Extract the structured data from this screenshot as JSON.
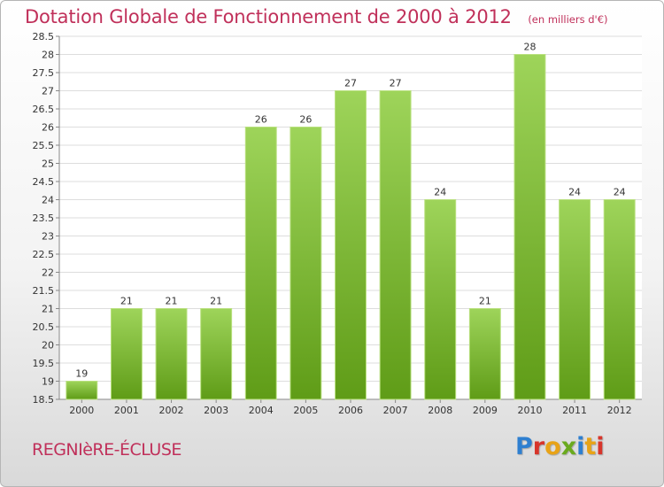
{
  "header": {
    "title": "Dotation Globale de Fonctionnement de 2000 à 2012",
    "subtitle": "(en milliers d'€)"
  },
  "footer": {
    "commune": "REGNIèRE-ÉCLUSE",
    "brand": "Proxiti"
  },
  "colors": {
    "title": "#c0305a",
    "bar_light": "#9ed45a",
    "bar_dark": "#5f9c17",
    "brand_letters": [
      "#2e7fd0",
      "#d7352b",
      "#e8a317",
      "#6aaa1e",
      "#2e7fd0",
      "#e8a317",
      "#d7352b"
    ]
  },
  "chart_data": {
    "type": "bar",
    "title": "Dotation Globale de Fonctionnement de 2000 à 2012",
    "subtitle": "(en milliers d'€)",
    "categories": [
      "2000",
      "2001",
      "2002",
      "2003",
      "2004",
      "2005",
      "2006",
      "2007",
      "2008",
      "2009",
      "2010",
      "2011",
      "2012"
    ],
    "values": [
      19,
      21,
      21,
      21,
      26,
      26,
      27,
      27,
      24,
      21,
      28,
      24,
      24
    ],
    "value_labels": [
      "19",
      "21",
      "21",
      "21",
      "26",
      "26",
      "27",
      "27",
      "24",
      "21",
      "28",
      "24",
      "24"
    ],
    "ylim": [
      18.5,
      28.5
    ],
    "yticks": [
      "18.5",
      "19",
      "19.5",
      "20",
      "20.5",
      "21",
      "21.5",
      "22",
      "22.5",
      "23",
      "23.5",
      "24",
      "24.5",
      "25",
      "25.5",
      "26",
      "26.5",
      "27",
      "27.5",
      "28",
      "28.5"
    ],
    "grid": true,
    "legend": "none"
  }
}
